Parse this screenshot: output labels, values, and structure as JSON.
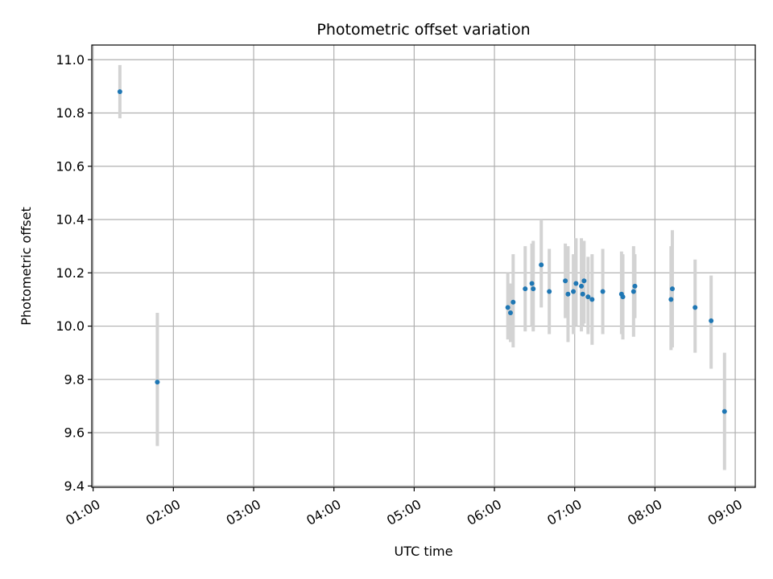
{
  "chart_data": {
    "type": "scatter",
    "title": "Photometric offset variation",
    "xlabel": "UTC time",
    "ylabel": "Photometric offset",
    "x_unit": "UTC time (HH:MM)",
    "xlim": [
      "00:59",
      "09:15"
    ],
    "ylim": [
      9.395,
      11.055
    ],
    "x_ticks": [
      "01:00",
      "02:00",
      "03:00",
      "04:00",
      "05:00",
      "06:00",
      "07:00",
      "08:00",
      "09:00"
    ],
    "y_ticks": [
      "9.4",
      "9.6",
      "9.8",
      "10.0",
      "10.2",
      "10.4",
      "10.6",
      "10.8",
      "11.0"
    ],
    "grid": true,
    "colors": {
      "points": "#1f77b4",
      "errorbars": "#d3d3d3",
      "grid": "#b0b0b0"
    },
    "series": [
      {
        "points": [
          {
            "x": "01:20",
            "y": 10.88,
            "ylo": 10.78,
            "yhi": 10.98
          },
          {
            "x": "01:48",
            "y": 9.79,
            "ylo": 9.55,
            "yhi": 10.05
          },
          {
            "x": "06:10",
            "y": 10.07,
            "ylo": 9.95,
            "yhi": 10.2
          },
          {
            "x": "06:12",
            "y": 10.05,
            "ylo": 9.94,
            "yhi": 10.16
          },
          {
            "x": "06:14",
            "y": 10.09,
            "ylo": 9.92,
            "yhi": 10.27
          },
          {
            "x": "06:23",
            "y": 10.14,
            "ylo": 9.98,
            "yhi": 10.3
          },
          {
            "x": "06:28",
            "y": 10.16,
            "ylo": 10.0,
            "yhi": 10.31
          },
          {
            "x": "06:29",
            "y": 10.14,
            "ylo": 9.98,
            "yhi": 10.32
          },
          {
            "x": "06:35",
            "y": 10.23,
            "ylo": 10.07,
            "yhi": 10.4
          },
          {
            "x": "06:41",
            "y": 10.13,
            "ylo": 9.97,
            "yhi": 10.29
          },
          {
            "x": "06:53",
            "y": 10.17,
            "ylo": 10.03,
            "yhi": 10.31
          },
          {
            "x": "06:55",
            "y": 10.12,
            "ylo": 9.94,
            "yhi": 10.3
          },
          {
            "x": "06:59",
            "y": 10.13,
            "ylo": 9.97,
            "yhi": 10.27
          },
          {
            "x": "07:01",
            "y": 10.16,
            "ylo": 10.0,
            "yhi": 10.33
          },
          {
            "x": "07:05",
            "y": 10.15,
            "ylo": 9.98,
            "yhi": 10.33
          },
          {
            "x": "07:06",
            "y": 10.12,
            "ylo": 10.0,
            "yhi": 10.28
          },
          {
            "x": "07:07",
            "y": 10.17,
            "ylo": 10.01,
            "yhi": 10.32
          },
          {
            "x": "07:10",
            "y": 10.11,
            "ylo": 9.97,
            "yhi": 10.26
          },
          {
            "x": "07:13",
            "y": 10.1,
            "ylo": 9.93,
            "yhi": 10.27
          },
          {
            "x": "07:21",
            "y": 10.13,
            "ylo": 9.97,
            "yhi": 10.29
          },
          {
            "x": "07:35",
            "y": 10.12,
            "ylo": 9.97,
            "yhi": 10.28
          },
          {
            "x": "07:36",
            "y": 10.11,
            "ylo": 9.95,
            "yhi": 10.27
          },
          {
            "x": "07:44",
            "y": 10.13,
            "ylo": 9.96,
            "yhi": 10.3
          },
          {
            "x": "07:45",
            "y": 10.15,
            "ylo": 10.03,
            "yhi": 10.27
          },
          {
            "x": "08:12",
            "y": 10.1,
            "ylo": 9.91,
            "yhi": 10.3
          },
          {
            "x": "08:13",
            "y": 10.14,
            "ylo": 9.92,
            "yhi": 10.36
          },
          {
            "x": "08:30",
            "y": 10.07,
            "ylo": 9.9,
            "yhi": 10.25
          },
          {
            "x": "08:42",
            "y": 10.02,
            "ylo": 9.84,
            "yhi": 10.19
          },
          {
            "x": "08:52",
            "y": 9.68,
            "ylo": 9.46,
            "yhi": 9.9
          }
        ]
      }
    ]
  }
}
